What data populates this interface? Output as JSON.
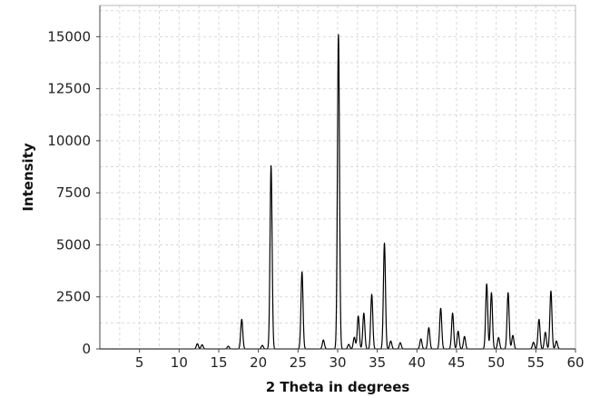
{
  "chart_data": {
    "type": "line",
    "title": "",
    "xlabel": "2 Theta in degrees",
    "ylabel": "Intensity",
    "xlim": [
      0,
      60
    ],
    "ylim": [
      0,
      16500
    ],
    "x_ticks": [
      5,
      10,
      15,
      20,
      25,
      30,
      35,
      40,
      45,
      50,
      55,
      60
    ],
    "y_ticks": [
      0,
      2500,
      5000,
      7500,
      10000,
      12500,
      15000
    ],
    "y_tick_labels": [
      "0",
      "2500",
      "5000",
      "7500",
      "10000",
      "12500",
      "15000"
    ],
    "grid": true,
    "legend": "none",
    "line_color": "#000000",
    "grid_color": "#d9d9d9",
    "series": [
      {
        "peaks": [
          {
            "x": 12.3,
            "y": 250
          },
          {
            "x": 12.9,
            "y": 200
          },
          {
            "x": 16.2,
            "y": 130
          },
          {
            "x": 17.9,
            "y": 1420
          },
          {
            "x": 20.5,
            "y": 170
          },
          {
            "x": 21.6,
            "y": 8800
          },
          {
            "x": 25.5,
            "y": 3700
          },
          {
            "x": 28.2,
            "y": 430
          },
          {
            "x": 30.1,
            "y": 15100
          },
          {
            "x": 31.4,
            "y": 220
          },
          {
            "x": 32.1,
            "y": 560
          },
          {
            "x": 32.6,
            "y": 1580
          },
          {
            "x": 33.3,
            "y": 1720
          },
          {
            "x": 34.3,
            "y": 2620
          },
          {
            "x": 35.9,
            "y": 5080
          },
          {
            "x": 36.7,
            "y": 380
          },
          {
            "x": 37.9,
            "y": 300
          },
          {
            "x": 40.5,
            "y": 480
          },
          {
            "x": 41.5,
            "y": 1020
          },
          {
            "x": 43.0,
            "y": 1950
          },
          {
            "x": 44.5,
            "y": 1720
          },
          {
            "x": 45.2,
            "y": 850
          },
          {
            "x": 46.0,
            "y": 600
          },
          {
            "x": 48.8,
            "y": 3120
          },
          {
            "x": 49.4,
            "y": 2700
          },
          {
            "x": 50.3,
            "y": 550
          },
          {
            "x": 51.5,
            "y": 2700
          },
          {
            "x": 52.1,
            "y": 650
          },
          {
            "x": 54.7,
            "y": 320
          },
          {
            "x": 55.4,
            "y": 1420
          },
          {
            "x": 56.2,
            "y": 800
          },
          {
            "x": 56.9,
            "y": 2780
          },
          {
            "x": 57.6,
            "y": 380
          }
        ]
      }
    ]
  }
}
